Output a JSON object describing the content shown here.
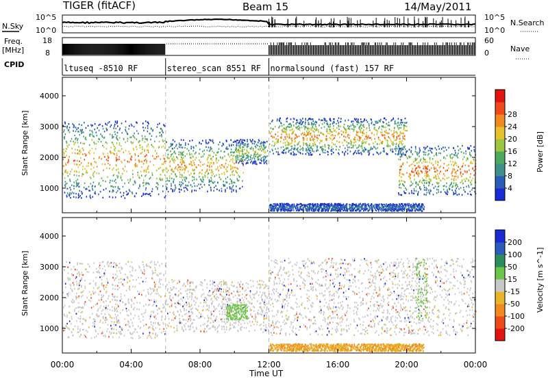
{
  "header": {
    "radar": "TIGER (fitACF)",
    "beam": "Beam 15",
    "date": "14/May/2011"
  },
  "top_strips": {
    "nsky_label": "N.Sky",
    "nsearch_label": "N.Search",
    "nsky_ticks": [
      "10^5",
      "10^0"
    ],
    "nsearch_ticks": [
      "10^5",
      "10^0"
    ],
    "freq_label_line1": "Freq.",
    "freq_label_line2": "[MHz]",
    "freq_ticks": [
      "18",
      "8"
    ],
    "nave_label": "Nave",
    "nave_ticks": [
      "60",
      "0"
    ],
    "cpid_label": "CPID",
    "cpid_segments": [
      {
        "label": "ltuseq -8510 RF",
        "start": 0,
        "end": 6
      },
      {
        "label": "stereo_scan 8551 RF",
        "start": 6,
        "end": 12
      },
      {
        "label": "normalsound (fast) 157 RF",
        "start": 12,
        "end": 24
      }
    ]
  },
  "chart_data": [
    {
      "type": "heatmap",
      "title": "",
      "xlabel": "",
      "ylabel": "Slant Range [km]",
      "xlim": [
        0,
        24
      ],
      "ylim": [
        200,
        4600
      ],
      "yticks": [
        1000,
        2000,
        3000,
        4000
      ],
      "colorbar": {
        "label": "Power [dB]",
        "ticks": [
          4,
          8,
          12,
          16,
          20,
          24,
          28
        ],
        "range": [
          0,
          32
        ],
        "colors": [
          "#1a2bd6",
          "#2a5cb8",
          "#3f8f8a",
          "#4fa860",
          "#9bc640",
          "#e8c22a",
          "#f08a1e",
          "#ee4a1a",
          "#e01410"
        ]
      },
      "echo_regions": [
        {
          "t0": 0.0,
          "t1": 6.0,
          "r_low": 700,
          "r_high": 3200,
          "peak": 26
        },
        {
          "t0": 6.0,
          "t1": 10.5,
          "r_low": 900,
          "r_high": 2600,
          "peak": 24
        },
        {
          "t0": 10.0,
          "t1": 11.9,
          "r_low": 1800,
          "r_high": 2600,
          "peak": 18
        },
        {
          "t0": 12.0,
          "t1": 20.0,
          "r_low": 2100,
          "r_high": 3300,
          "peak": 26
        },
        {
          "t0": 19.5,
          "t1": 24.0,
          "r_low": 800,
          "r_high": 2400,
          "peak": 28
        },
        {
          "t0": 12.0,
          "t1": 21.0,
          "r_low": 280,
          "r_high": 520,
          "peak": 6
        }
      ]
    },
    {
      "type": "heatmap",
      "title": "",
      "xlabel": "Time UT",
      "ylabel": "Slant Range [km]",
      "xlim": [
        0,
        24
      ],
      "ylim": [
        200,
        4600
      ],
      "yticks": [
        1000,
        2000,
        3000,
        4000
      ],
      "xticks": [
        "00:00",
        "04:00",
        "08:00",
        "12:00",
        "16:00",
        "20:00",
        "00:00"
      ],
      "colorbar": {
        "label": "Velocity [m s^-1]",
        "ticks": [
          -200,
          -100,
          -50,
          -15,
          15,
          50,
          100,
          200
        ],
        "colors": [
          "#e01410",
          "#ee4a1a",
          "#f08a1e",
          "#e8b42a",
          "#c8c8c8",
          "#6cc44a",
          "#2a8f5a",
          "#2a5cb8",
          "#1a2bd6"
        ]
      },
      "echo_regions": [
        {
          "t0": 0.0,
          "t1": 6.0,
          "r_low": 700,
          "r_high": 3200,
          "velocity": "-15..15"
        },
        {
          "t0": 6.0,
          "t1": 12.0,
          "r_low": 900,
          "r_high": 2600,
          "velocity": "-15..15"
        },
        {
          "t0": 12.0,
          "t1": 24.0,
          "r_low": 800,
          "r_high": 3300,
          "velocity": "-15..15"
        },
        {
          "t0": 9.5,
          "t1": 10.8,
          "r_low": 1300,
          "r_high": 1800,
          "velocity": "15..50"
        },
        {
          "t0": 20.5,
          "t1": 21.2,
          "r_low": 1300,
          "r_high": 3300,
          "velocity": "15..50"
        },
        {
          "t0": 12.0,
          "t1": 21.0,
          "r_low": 280,
          "r_high": 520,
          "velocity": "-50..-15"
        }
      ]
    }
  ]
}
